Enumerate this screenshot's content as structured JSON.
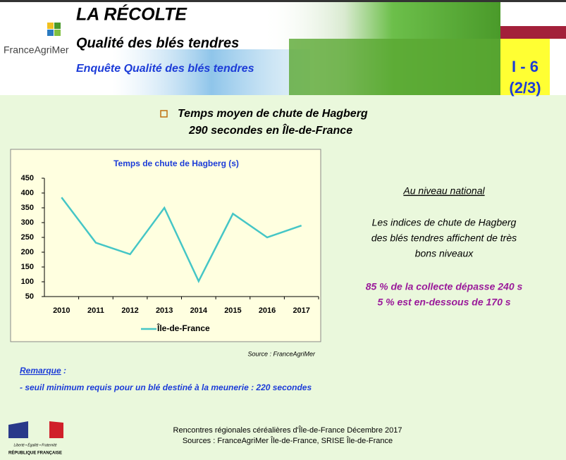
{
  "header": {
    "title": "LA RÉCOLTE",
    "subtitle": "Qualité des blés tendres",
    "logo": "FranceAgriMer",
    "survey": "Enquête Qualité des blés tendres",
    "section": "I - 6",
    "page": "(2/3)"
  },
  "heading": {
    "line1": "Temps moyen de chute de Hagberg",
    "line2": "290 secondes en Île-de-France"
  },
  "chart_data": {
    "type": "line",
    "title": "Temps de chute de Hagberg (s)",
    "categories": [
      "2010",
      "2011",
      "2012",
      "2013",
      "2014",
      "2015",
      "2016",
      "2017"
    ],
    "series": [
      {
        "name": "Île-de-France",
        "color": "#45c6c6",
        "values": [
          385,
          232,
          193,
          350,
          102,
          330,
          250,
          290
        ]
      }
    ],
    "ylim": [
      50,
      450
    ],
    "yticks": [
      50,
      100,
      150,
      200,
      250,
      300,
      350,
      400,
      450
    ],
    "legend": "bottom",
    "source": "Source : FranceAgriMer"
  },
  "national": {
    "heading": "Au niveau national",
    "text": [
      "Les indices de chute de Hagberg",
      "des blés tendres affichent de très",
      "bons niveaux"
    ],
    "highlights": [
      "85 % de la collecte dépasse 240 s",
      "5 % est en-dessous de 170 s"
    ]
  },
  "remark": {
    "label": "Remarque",
    "separator": " :",
    "text": "- seuil minimum requis pour un blé destiné à la meunerie : 220 secondes"
  },
  "footer": {
    "lines": [
      "Rencontres régionales céréalières d'Île-de-France Décembre 2017",
      "Sources : FranceAgriMer Île-de-France, SRISE Île-de-France"
    ]
  },
  "republique": {
    "motto": "Liberté • Égalité • Fraternité",
    "name": "RÉPUBLIQUE FRANÇAISE"
  }
}
